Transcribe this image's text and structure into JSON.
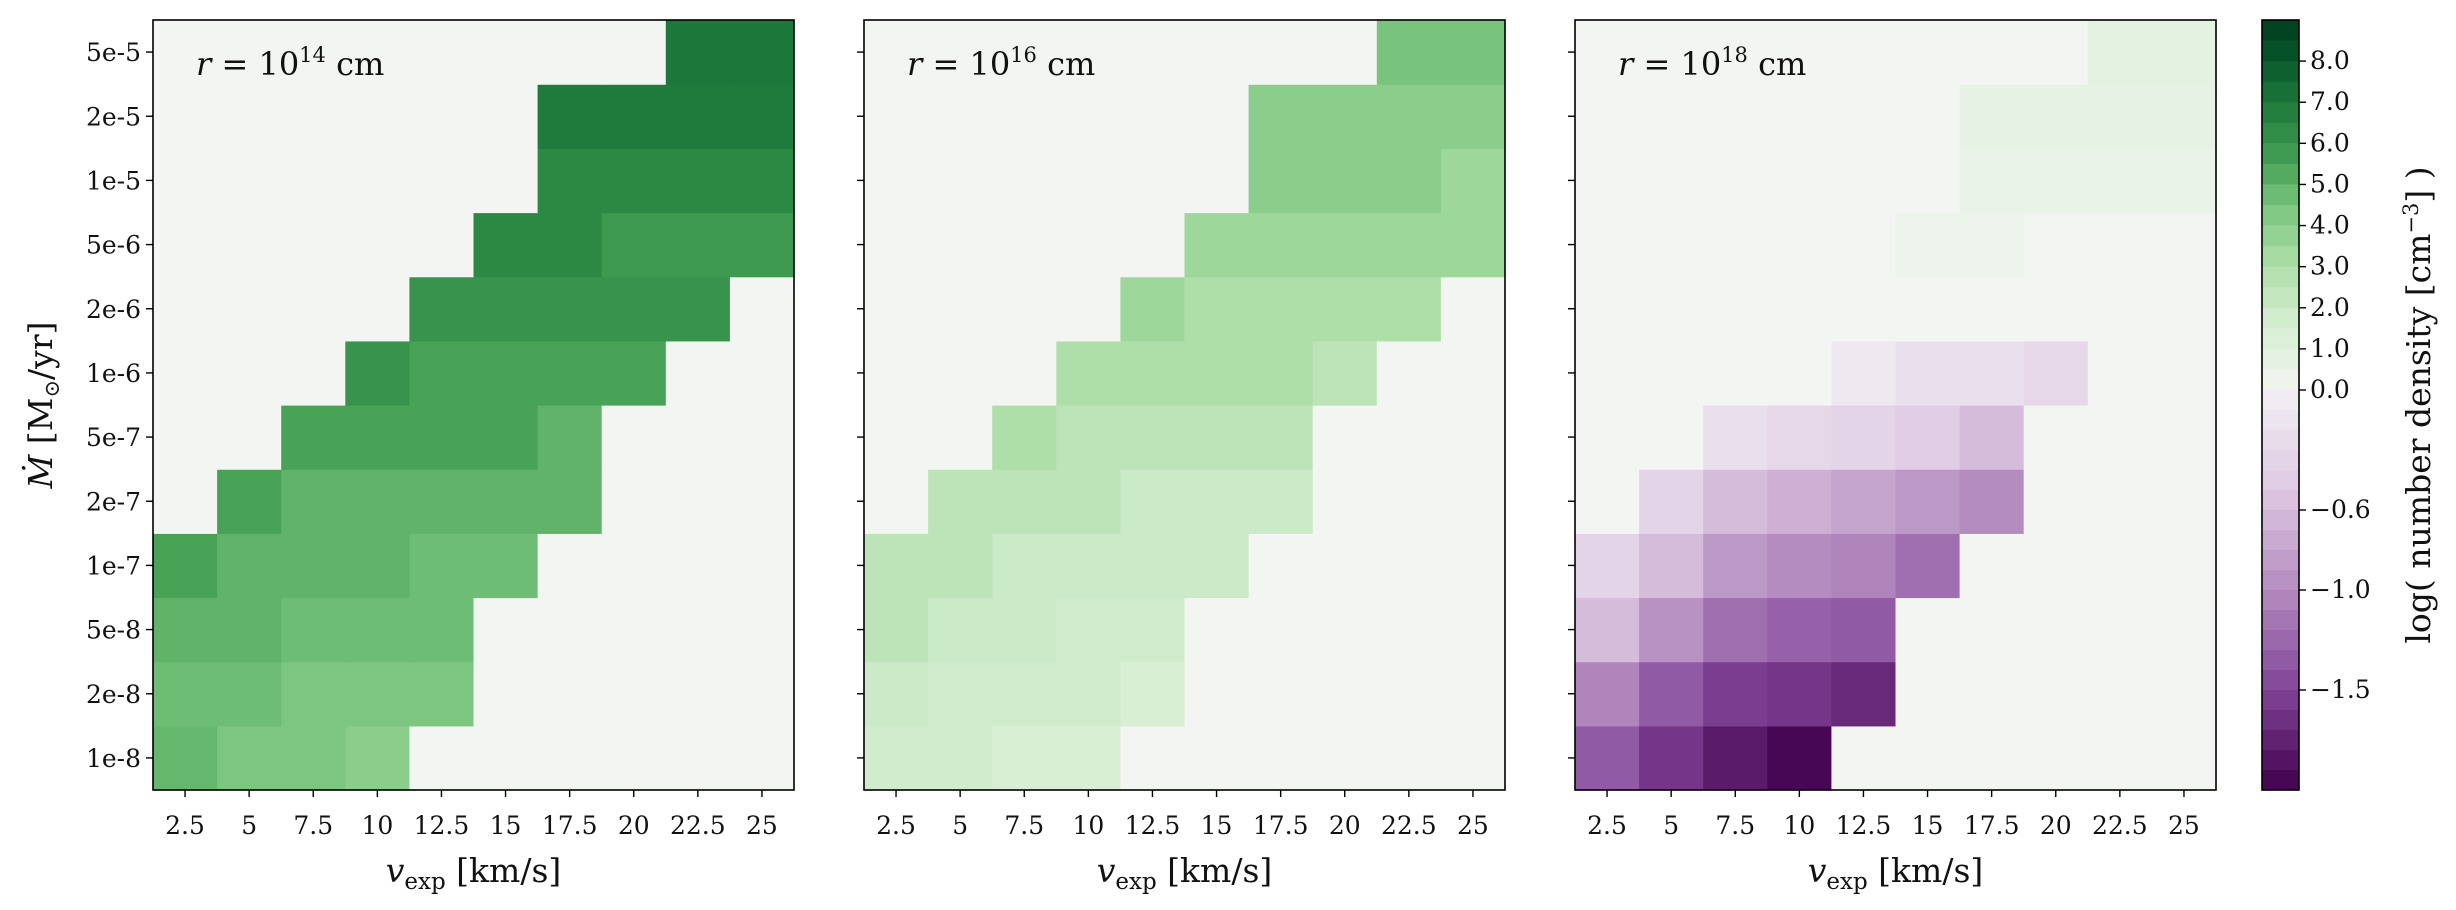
{
  "chart_data": {
    "type": "heatmap",
    "x_categories": [
      "2.5",
      "5",
      "7.5",
      "10",
      "12.5",
      "15",
      "17.5",
      "20",
      "22.5",
      "25"
    ],
    "y_categories": [
      "1e-8",
      "2e-8",
      "5e-8",
      "1e-7",
      "2e-7",
      "5e-7",
      "1e-6",
      "2e-6",
      "5e-6",
      "1e-5",
      "2e-5",
      "5e-5"
    ],
    "xlabel_parts": {
      "var": "v",
      "sub": "exp",
      "unit": " [km/s]"
    },
    "ylabel_parts": {
      "var": "Ṁ",
      "unit_pre": " [M",
      "unit_sub": "⊙",
      "unit_post": "/yr]"
    },
    "colorbar": {
      "label": "log( number density [cm⁻³] )",
      "label_parts": {
        "pre": "log( number density [cm",
        "sup": "−3",
        "post": "] )"
      },
      "ticks": [
        "8.0",
        "7.0",
        "6.0",
        "5.0",
        "4.0",
        "3.0",
        "2.0",
        "1.0",
        "0.0",
        "−0.6",
        "−1.0",
        "−1.5"
      ],
      "pos_range": [
        0,
        9
      ],
      "neg_range": [
        -2,
        0
      ]
    },
    "panels": [
      {
        "annotation_parts": {
          "lhs": "r",
          "eq": " = 10",
          "exp": "14",
          "unit": " cm"
        },
        "values": [
          [
            4.9,
            4.4,
            4.4,
            4.0,
            null,
            null,
            null,
            null,
            null,
            null
          ],
          [
            4.7,
            4.7,
            4.4,
            4.4,
            4.4,
            null,
            null,
            null,
            null,
            null
          ],
          [
            5.0,
            5.0,
            4.7,
            4.7,
            4.7,
            null,
            null,
            null,
            null,
            null
          ],
          [
            5.5,
            5.0,
            5.0,
            5.0,
            4.7,
            4.7,
            null,
            null,
            null,
            null
          ],
          [
            null,
            5.5,
            5.0,
            5.0,
            5.0,
            5.0,
            5.0,
            null,
            null,
            null
          ],
          [
            null,
            null,
            5.5,
            5.5,
            5.5,
            5.5,
            5.0,
            null,
            null,
            null
          ],
          [
            null,
            null,
            null,
            6.0,
            5.5,
            5.5,
            5.5,
            5.5,
            null,
            null
          ],
          [
            null,
            null,
            null,
            null,
            6.0,
            6.0,
            6.0,
            6.0,
            6.0,
            null
          ],
          [
            null,
            null,
            null,
            null,
            null,
            6.4,
            6.4,
            5.8,
            5.8,
            5.8
          ],
          [
            null,
            null,
            null,
            null,
            null,
            null,
            6.4,
            6.4,
            6.4,
            6.4
          ],
          [
            null,
            null,
            null,
            null,
            null,
            null,
            6.9,
            6.9,
            6.9,
            6.9
          ],
          [
            null,
            null,
            null,
            null,
            null,
            null,
            null,
            null,
            7.0,
            7.0
          ]
        ]
      },
      {
        "annotation_parts": {
          "lhs": "r",
          "eq": " = 10",
          "exp": "16",
          "unit": " cm"
        },
        "values": [
          [
            1.8,
            1.8,
            1.5,
            1.5,
            null,
            null,
            null,
            null,
            null,
            null
          ],
          [
            2.0,
            1.8,
            1.8,
            1.8,
            1.5,
            null,
            null,
            null,
            null,
            null
          ],
          [
            2.5,
            2.0,
            2.0,
            1.8,
            1.8,
            null,
            null,
            null,
            null,
            null
          ],
          [
            2.5,
            2.5,
            2.0,
            2.0,
            2.0,
            2.0,
            null,
            null,
            null,
            null
          ],
          [
            null,
            2.5,
            2.5,
            2.5,
            2.0,
            2.0,
            2.0,
            null,
            null,
            null
          ],
          [
            null,
            null,
            3.0,
            2.5,
            2.5,
            2.5,
            2.5,
            null,
            null,
            null
          ],
          [
            null,
            null,
            null,
            3.0,
            3.0,
            3.0,
            3.0,
            2.5,
            null,
            null
          ],
          [
            null,
            null,
            null,
            null,
            3.5,
            3.0,
            3.0,
            3.0,
            3.0,
            null
          ],
          [
            null,
            null,
            null,
            null,
            null,
            3.5,
            3.5,
            3.5,
            3.5,
            3.5
          ],
          [
            null,
            null,
            null,
            null,
            null,
            null,
            4.0,
            4.0,
            4.0,
            3.5
          ],
          [
            null,
            null,
            null,
            null,
            null,
            null,
            4.0,
            4.0,
            4.0,
            4.0
          ],
          [
            null,
            null,
            null,
            null,
            null,
            null,
            null,
            null,
            4.5,
            4.5
          ]
        ]
      },
      {
        "annotation_parts": {
          "lhs": "r",
          "eq": " = 10",
          "exp": "18",
          "unit": " cm"
        },
        "values": [
          [
            -1.35,
            -1.6,
            -1.8,
            -1.95,
            null,
            null,
            null,
            null,
            null,
            null
          ],
          [
            -1.05,
            -1.35,
            -1.55,
            -1.6,
            -1.7,
            null,
            null,
            null,
            null,
            null
          ],
          [
            -0.6,
            -0.95,
            -1.2,
            -1.3,
            -1.35,
            null,
            null,
            null,
            null,
            null
          ],
          [
            -0.35,
            -0.6,
            -0.9,
            -1.0,
            -1.05,
            -1.2,
            null,
            null,
            null,
            null
          ],
          [
            null,
            -0.35,
            -0.6,
            -0.7,
            -0.8,
            -0.9,
            -1.0,
            null,
            null,
            null
          ],
          [
            null,
            null,
            -0.2,
            -0.3,
            -0.35,
            -0.45,
            -0.6,
            null,
            null,
            null
          ],
          [
            null,
            null,
            null,
            null,
            -0.1,
            -0.2,
            -0.2,
            -0.3,
            null,
            null
          ],
          [
            null,
            null,
            null,
            null,
            null,
            null,
            null,
            null,
            null,
            null
          ],
          [
            null,
            null,
            null,
            null,
            null,
            0.35,
            0.35,
            null,
            null,
            null
          ],
          [
            null,
            null,
            null,
            null,
            null,
            null,
            0.5,
            0.5,
            0.5,
            0.5
          ],
          [
            null,
            null,
            null,
            null,
            null,
            null,
            0.7,
            0.7,
            0.7,
            0.7
          ],
          [
            null,
            null,
            null,
            null,
            null,
            null,
            null,
            null,
            0.8,
            0.8
          ]
        ]
      }
    ],
    "empty_cell_color": "#f2f5f1",
    "grid": false
  }
}
